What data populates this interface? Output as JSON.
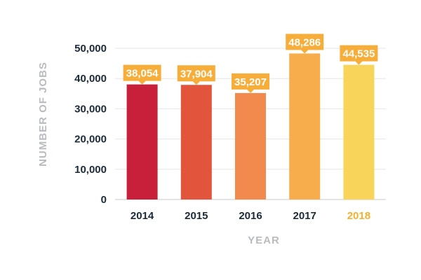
{
  "chart_data": {
    "type": "bar",
    "title": "",
    "xlabel": "YEAR",
    "ylabel": "NUMBER OF JOBS",
    "categories": [
      "2014",
      "2015",
      "2016",
      "2017",
      "2018"
    ],
    "values": [
      38054,
      37904,
      35207,
      48286,
      44535
    ],
    "data_labels": [
      "38,054",
      "37,904",
      "35,207",
      "48,286",
      "44,535"
    ],
    "bar_colors": [
      "#c8203a",
      "#e2543c",
      "#f28a4e",
      "#f7ad4b",
      "#f9d45a"
    ],
    "category_label_colors": [
      "#1c2b3a",
      "#1c2b3a",
      "#1c2b3a",
      "#1c2b3a",
      "#f5b02e"
    ],
    "label_box_color": "#f7ad3a",
    "ylim": [
      0,
      50000
    ],
    "yticks": [
      0,
      10000,
      20000,
      30000,
      40000,
      50000
    ],
    "ytick_labels": [
      "0",
      "10,000",
      "20,000",
      "30,000",
      "40,000",
      "50,000"
    ],
    "grid": true,
    "grid_color": "#e6e6e6"
  }
}
